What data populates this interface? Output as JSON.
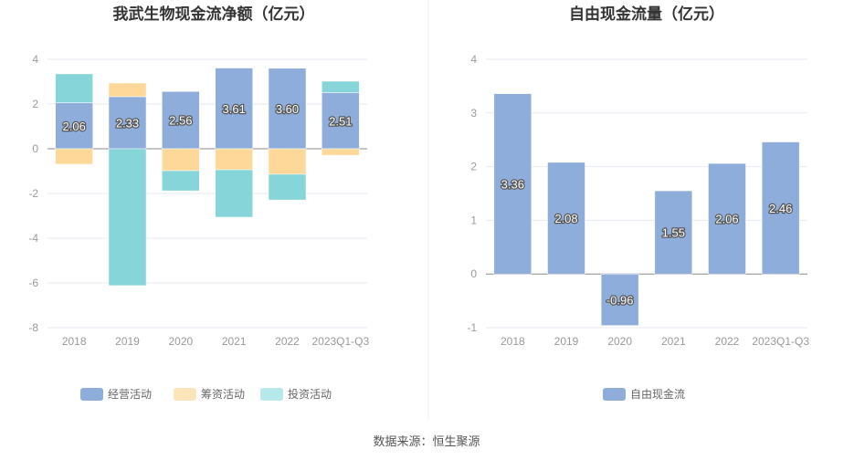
{
  "chart_data": [
    {
      "type": "bar",
      "stacked": true,
      "title": "我武生物现金流净额（亿元）",
      "categories": [
        "2018",
        "2019",
        "2020",
        "2021",
        "2022",
        "2023Q1-Q3"
      ],
      "ylim": [
        -8,
        4
      ],
      "yticks": [
        4,
        2,
        0,
        -2,
        -4,
        -6,
        -8
      ],
      "grid": true,
      "legend": "bottom",
      "series": [
        {
          "name": "经营活动",
          "color": "#8eaddb",
          "legend_color": "#8eaddb",
          "values": [
            2.06,
            2.33,
            2.56,
            3.61,
            3.6,
            2.51
          ],
          "labels": true
        },
        {
          "name": "筹资活动",
          "color": "#fdd898",
          "legend_color": "#fde5bb",
          "values": [
            -0.69,
            0.61,
            -0.98,
            -0.94,
            -1.14,
            -0.29
          ]
        },
        {
          "name": "投资活动",
          "color": "#86d5d8",
          "legend_color": "#b7e8ea",
          "values": [
            1.29,
            -6.12,
            -0.9,
            -2.12,
            -1.15,
            0.51
          ]
        }
      ]
    },
    {
      "type": "bar",
      "title": "自由现金流量（亿元）",
      "categories": [
        "2018",
        "2019",
        "2020",
        "2021",
        "2022",
        "2023Q1-Q3"
      ],
      "ylim": [
        -1,
        4
      ],
      "yticks": [
        4,
        3,
        2,
        1,
        0,
        -1
      ],
      "grid": true,
      "legend": "bottom",
      "series": [
        {
          "name": "自由现金流",
          "color": "#8eaddb",
          "legend_color": "#8eaddb",
          "values": [
            3.36,
            2.08,
            -0.96,
            1.55,
            2.06,
            2.46
          ],
          "labels": true
        }
      ]
    }
  ],
  "source": "数据来源：恒生聚源"
}
